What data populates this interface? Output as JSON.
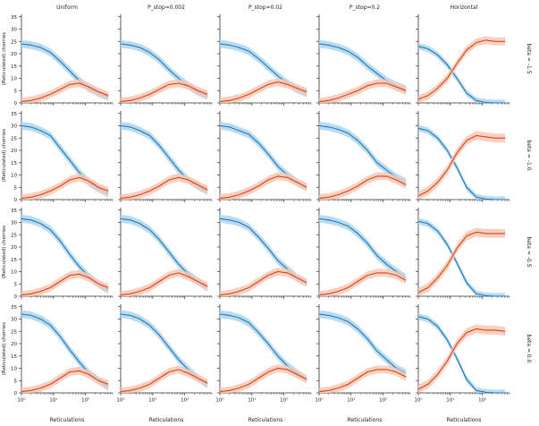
{
  "figure": {
    "columns": [
      "Uniform",
      "P_stop=0.002",
      "P_stop=0.02",
      "P_stop=0.2",
      "Horizontal"
    ],
    "rows": [
      "beta = -1.5",
      "beta = -1.0",
      "beta = -0.5",
      "beta = 0.0"
    ],
    "ylabel": "(Reticulated) cherries",
    "xlabel": "Reticulations",
    "colors": {
      "blue": "#1f77b4",
      "blue_band": "#aed6f1",
      "orange": "#d84315",
      "orange_band": "#f7c8b4"
    }
  },
  "chart_data": {
    "type": "line",
    "layout": "grid 4 rows x 5 columns, shared axes",
    "x_scale": "log10",
    "xlim": [
      1,
      700
    ],
    "ylim": [
      0,
      36
    ],
    "x_ticks": [
      1,
      10,
      100
    ],
    "x_tick_labels": [
      "10⁰",
      "10¹",
      "10²"
    ],
    "y_ticks": [
      0,
      5,
      10,
      15,
      20,
      25,
      30,
      35
    ],
    "x": [
      1,
      2,
      4,
      8,
      16,
      32,
      64,
      128,
      256,
      512
    ],
    "series": [
      {
        "row": 0,
        "col": 0,
        "name": "cherries",
        "color": "blue",
        "values": [
          24,
          23.5,
          22.5,
          20.5,
          17,
          13,
          9,
          6,
          4,
          2.5
        ],
        "band": 1.6
      },
      {
        "row": 0,
        "col": 0,
        "name": "reticulated cherries",
        "color": "orange",
        "values": [
          0.5,
          1,
          2,
          3.5,
          5.5,
          7.5,
          8,
          6.5,
          4.5,
          3
        ],
        "band": 1.6
      },
      {
        "row": 0,
        "col": 1,
        "name": "cherries",
        "color": "blue",
        "values": [
          24,
          23.5,
          22.5,
          20.5,
          17.5,
          13.5,
          10,
          7,
          4.5,
          3
        ],
        "band": 1.6
      },
      {
        "row": 0,
        "col": 1,
        "name": "reticulated cherries",
        "color": "orange",
        "values": [
          0.5,
          1,
          2,
          3.5,
          5.5,
          7.5,
          8,
          7,
          5,
          3.5
        ],
        "band": 1.6
      },
      {
        "row": 0,
        "col": 2,
        "name": "cherries",
        "color": "blue",
        "values": [
          24,
          23.5,
          22.5,
          21,
          18,
          14.5,
          11,
          8,
          5.5,
          4
        ],
        "band": 1.6
      },
      {
        "row": 0,
        "col": 2,
        "name": "reticulated cherries",
        "color": "orange",
        "values": [
          0.5,
          1,
          2,
          3.5,
          5.5,
          7.5,
          8.5,
          7.5,
          6,
          4.5
        ],
        "band": 1.6
      },
      {
        "row": 0,
        "col": 3,
        "name": "cherries",
        "color": "blue",
        "values": [
          24,
          23.5,
          22.5,
          21,
          18.5,
          15,
          12,
          9,
          7,
          5.5
        ],
        "band": 1.6
      },
      {
        "row": 0,
        "col": 3,
        "name": "reticulated cherries",
        "color": "orange",
        "values": [
          0.5,
          1,
          2,
          3.5,
          5,
          7,
          8,
          8,
          6.5,
          5
        ],
        "band": 1.6
      },
      {
        "row": 0,
        "col": 4,
        "name": "cherries",
        "color": "blue",
        "values": [
          23,
          22,
          19.5,
          15.5,
          10,
          4,
          1,
          0.2,
          0,
          0
        ],
        "band": 1.3
      },
      {
        "row": 0,
        "col": 4,
        "name": "reticulated cherries",
        "color": "orange",
        "values": [
          1.5,
          3,
          6,
          10,
          16,
          21.5,
          24.5,
          25.5,
          25,
          25
        ],
        "band": 1.6
      },
      {
        "row": 1,
        "col": 0,
        "name": "cherries",
        "color": "blue",
        "values": [
          30,
          29.5,
          28,
          26,
          21,
          16,
          11,
          7,
          4.5,
          2.5
        ],
        "band": 1.6
      },
      {
        "row": 1,
        "col": 0,
        "name": "reticulated cherries",
        "color": "orange",
        "values": [
          0.5,
          1,
          2,
          3.5,
          5.5,
          8,
          9,
          7.5,
          5,
          3.5
        ],
        "band": 1.6
      },
      {
        "row": 1,
        "col": 1,
        "name": "cherries",
        "color": "blue",
        "values": [
          30,
          29.5,
          28,
          26,
          22,
          17,
          12,
          8,
          5.5,
          3.5
        ],
        "band": 1.6
      },
      {
        "row": 1,
        "col": 1,
        "name": "reticulated cherries",
        "color": "orange",
        "values": [
          0.5,
          1,
          2,
          3.5,
          5.5,
          8,
          9,
          8,
          6,
          4
        ],
        "band": 1.6
      },
      {
        "row": 1,
        "col": 2,
        "name": "cherries",
        "color": "blue",
        "values": [
          30,
          29.5,
          28,
          26.5,
          23,
          18.5,
          13.5,
          10,
          7,
          5
        ],
        "band": 1.6
      },
      {
        "row": 1,
        "col": 2,
        "name": "reticulated cherries",
        "color": "orange",
        "values": [
          0.5,
          1,
          2,
          3.5,
          5.5,
          8,
          9.5,
          9,
          7,
          5
        ],
        "band": 1.6
      },
      {
        "row": 1,
        "col": 3,
        "name": "cherries",
        "color": "blue",
        "values": [
          30,
          29.5,
          28.5,
          27,
          24,
          20,
          15,
          12,
          9,
          7
        ],
        "band": 1.6
      },
      {
        "row": 1,
        "col": 3,
        "name": "reticulated cherries",
        "color": "orange",
        "values": [
          0.5,
          1,
          2,
          3.5,
          5.5,
          8,
          9.5,
          9.5,
          8,
          6
        ],
        "band": 1.6
      },
      {
        "row": 1,
        "col": 4,
        "name": "cherries",
        "color": "blue",
        "values": [
          29,
          28,
          25,
          20,
          13,
          5,
          1,
          0.2,
          0,
          0
        ],
        "band": 1.3
      },
      {
        "row": 1,
        "col": 4,
        "name": "reticulated cherries",
        "color": "orange",
        "values": [
          1.5,
          3.5,
          7,
          12,
          19,
          24,
          26,
          25.5,
          25,
          25
        ],
        "band": 1.8
      },
      {
        "row": 2,
        "col": 0,
        "name": "cherries",
        "color": "blue",
        "values": [
          31.5,
          31,
          29.5,
          27,
          22.5,
          17,
          12,
          8,
          5,
          2.5
        ],
        "band": 1.6
      },
      {
        "row": 2,
        "col": 0,
        "name": "reticulated cherries",
        "color": "orange",
        "values": [
          0.5,
          1,
          2,
          3.5,
          6,
          8.5,
          9,
          7.5,
          5,
          3.5
        ],
        "band": 1.6
      },
      {
        "row": 2,
        "col": 1,
        "name": "cherries",
        "color": "blue",
        "values": [
          31.5,
          31,
          29.5,
          27,
          23,
          18,
          13,
          9,
          6,
          3.5
        ],
        "band": 1.6
      },
      {
        "row": 2,
        "col": 1,
        "name": "reticulated cherries",
        "color": "orange",
        "values": [
          0.5,
          1,
          2,
          3.5,
          6,
          8.5,
          9.5,
          8,
          6,
          4
        ],
        "band": 1.6
      },
      {
        "row": 2,
        "col": 2,
        "name": "cherries",
        "color": "blue",
        "values": [
          31.5,
          31,
          30,
          28,
          24,
          19.5,
          14.5,
          11,
          7.5,
          5.5
        ],
        "band": 1.6
      },
      {
        "row": 2,
        "col": 2,
        "name": "reticulated cherries",
        "color": "orange",
        "values": [
          0.5,
          1,
          2,
          3.5,
          6,
          8.5,
          10,
          9.5,
          7.5,
          5.5
        ],
        "band": 1.6
      },
      {
        "row": 2,
        "col": 3,
        "name": "cherries",
        "color": "blue",
        "values": [
          31.5,
          31,
          30,
          28.5,
          25.5,
          21.5,
          16.5,
          13,
          10,
          7.5
        ],
        "band": 1.6
      },
      {
        "row": 2,
        "col": 3,
        "name": "reticulated cherries",
        "color": "orange",
        "values": [
          0.5,
          1,
          2,
          3.5,
          6,
          8.5,
          9.5,
          9.5,
          8.5,
          6.5
        ],
        "band": 1.6
      },
      {
        "row": 2,
        "col": 4,
        "name": "cherries",
        "color": "blue",
        "values": [
          30.5,
          29.5,
          26.5,
          21,
          13.5,
          5.5,
          1,
          0.2,
          0,
          0
        ],
        "band": 1.3
      },
      {
        "row": 2,
        "col": 4,
        "name": "reticulated cherries",
        "color": "orange",
        "values": [
          1.5,
          3.5,
          7.5,
          12.5,
          19.5,
          24.5,
          26,
          25.5,
          25.5,
          25.5
        ],
        "band": 1.8
      },
      {
        "row": 3,
        "col": 0,
        "name": "cherries",
        "color": "blue",
        "values": [
          32,
          31.5,
          30,
          27.5,
          23,
          17.5,
          12.5,
          8,
          5,
          2.5
        ],
        "band": 1.6
      },
      {
        "row": 3,
        "col": 0,
        "name": "reticulated cherries",
        "color": "orange",
        "values": [
          0.5,
          1,
          2,
          3.5,
          6,
          8.5,
          9,
          7.5,
          5,
          3.5
        ],
        "band": 1.6
      },
      {
        "row": 3,
        "col": 1,
        "name": "cherries",
        "color": "blue",
        "values": [
          32,
          31.5,
          30,
          27.5,
          23.5,
          18.5,
          13.5,
          9.5,
          6,
          3.5
        ],
        "band": 1.6
      },
      {
        "row": 3,
        "col": 1,
        "name": "reticulated cherries",
        "color": "orange",
        "values": [
          0.5,
          1,
          2,
          3.5,
          6,
          8.5,
          9.5,
          8,
          6,
          4
        ],
        "band": 1.6
      },
      {
        "row": 3,
        "col": 2,
        "name": "cherries",
        "color": "blue",
        "values": [
          32,
          31.5,
          30.5,
          28.5,
          24.5,
          20,
          15,
          11,
          8,
          5.5
        ],
        "band": 1.6
      },
      {
        "row": 3,
        "col": 2,
        "name": "reticulated cherries",
        "color": "orange",
        "values": [
          0.5,
          1,
          2,
          3.5,
          6,
          8.5,
          10,
          9.5,
          7.5,
          5.5
        ],
        "band": 1.6
      },
      {
        "row": 3,
        "col": 3,
        "name": "cherries",
        "color": "blue",
        "values": [
          32,
          31.5,
          30.5,
          29,
          26,
          22,
          17,
          13.5,
          10,
          8
        ],
        "band": 1.6
      },
      {
        "row": 3,
        "col": 3,
        "name": "reticulated cherries",
        "color": "orange",
        "values": [
          0.5,
          1,
          2,
          3.5,
          6,
          8.5,
          9.5,
          9.5,
          8.5,
          6.5
        ],
        "band": 1.6
      },
      {
        "row": 3,
        "col": 4,
        "name": "cherries",
        "color": "blue",
        "values": [
          31,
          30,
          27,
          21.5,
          14,
          5.5,
          1,
          0.2,
          0,
          0
        ],
        "band": 1.3
      },
      {
        "row": 3,
        "col": 4,
        "name": "reticulated cherries",
        "color": "orange",
        "values": [
          1.5,
          3.5,
          7.5,
          13,
          20,
          24.5,
          26,
          25.5,
          25.5,
          25
        ],
        "band": 1.8
      }
    ]
  }
}
